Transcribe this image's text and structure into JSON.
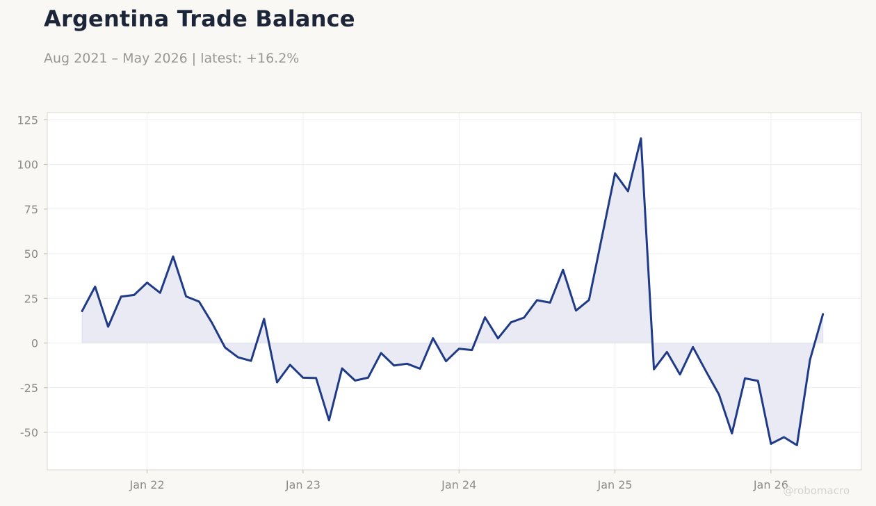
{
  "header": {
    "title": "Argentina Trade Balance",
    "subtitle": "Aug 2021 – May 2026 | latest: +16.2%"
  },
  "watermark": "@robomacro",
  "colors": {
    "line": "#1f3a86",
    "fill": "#e9eaf3",
    "grid": "#eeeeee",
    "plot_bg": "#ffffff",
    "plot_border": "#d9d7d0"
  },
  "chart_data": {
    "type": "area",
    "title": "Argentina Trade Balance",
    "subtitle": "Aug 2021 – May 2026 | latest: +16.2%",
    "xlabel": "",
    "ylabel": "",
    "x_start": "2021-08",
    "x_end": "2026-05",
    "ylim": [
      -71,
      129
    ],
    "grid": true,
    "y_ticks": [
      125,
      100,
      75,
      50,
      25,
      0,
      -25,
      -50
    ],
    "y_tick_labels": [
      "125",
      "100",
      "75",
      "50",
      "25",
      "0",
      "-25",
      "-50"
    ],
    "x_ticks": [
      "2022-01",
      "2023-01",
      "2024-01",
      "2025-01",
      "2026-01"
    ],
    "x_tick_labels": [
      "Jan 22",
      "Jan 23",
      "Jan 24",
      "Jan 25",
      "Jan 26"
    ],
    "series": [
      {
        "x": [
          "2021-08",
          "2021-09",
          "2021-10",
          "2021-11",
          "2021-12",
          "2022-01",
          "2022-02",
          "2022-03",
          "2022-04",
          "2022-05",
          "2022-06",
          "2022-07",
          "2022-08",
          "2022-09",
          "2022-10",
          "2022-11",
          "2022-12",
          "2023-01",
          "2023-02",
          "2023-03",
          "2023-04",
          "2023-05",
          "2023-06",
          "2023-07",
          "2023-08",
          "2023-09",
          "2023-10",
          "2023-11",
          "2023-12",
          "2024-01",
          "2024-02",
          "2024-03",
          "2024-04",
          "2024-05",
          "2024-06",
          "2024-07",
          "2024-08",
          "2024-09",
          "2024-10",
          "2024-11",
          "2024-12",
          "2025-01",
          "2025-02",
          "2025-03",
          "2025-04",
          "2025-05",
          "2025-06",
          "2025-07",
          "2025-08",
          "2025-09",
          "2025-10",
          "2025-11",
          "2025-12",
          "2026-01",
          "2026-02",
          "2026-03",
          "2026-04",
          "2026-05"
        ],
        "values": [
          17.9,
          31.6,
          9.1,
          26.0,
          26.9,
          33.8,
          28.1,
          48.5,
          26.1,
          23.2,
          11.2,
          -2.5,
          -8.0,
          -10.0,
          13.5,
          -22.0,
          -12.2,
          -19.4,
          -19.6,
          -43.3,
          -14.2,
          -21.0,
          -19.4,
          -5.6,
          -12.6,
          -11.6,
          -14.4,
          2.7,
          -10.2,
          -3.2,
          -3.9,
          14.4,
          2.6,
          11.6,
          14.2,
          24.0,
          22.6,
          41.0,
          18.2,
          24.1,
          59.6,
          95.0,
          85.0,
          114.6,
          -14.7,
          -5.0,
          -17.6,
          -2.3,
          -15.8,
          -28.8,
          -50.6,
          -19.8,
          -21.2,
          -56.4,
          -52.7,
          -57.2,
          -9.5,
          16.2
        ]
      }
    ]
  }
}
